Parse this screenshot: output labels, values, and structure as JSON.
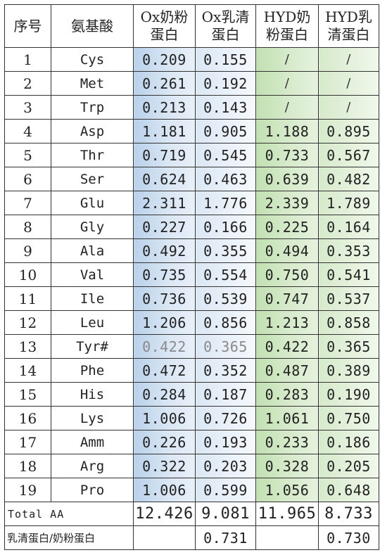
{
  "headers": {
    "index": "序号",
    "amino_acid": "氨基酸",
    "ox_milk": [
      "Ox奶粉",
      "蛋白"
    ],
    "ox_whey": [
      "Ox乳清",
      "蛋白"
    ],
    "hyd_milk": [
      "HYD奶",
      "粉蛋白"
    ],
    "hyd_whey": [
      "HYD乳",
      "清蛋白"
    ]
  },
  "rows": [
    {
      "no": "1",
      "aa": "Cys",
      "ox_milk": "0.209",
      "ox_whey": "0.155",
      "hyd_milk": "/",
      "hyd_whey": "/"
    },
    {
      "no": "2",
      "aa": "Met",
      "ox_milk": "0.261",
      "ox_whey": "0.192",
      "hyd_milk": "/",
      "hyd_whey": "/"
    },
    {
      "no": "3",
      "aa": "Trp",
      "ox_milk": "0.213",
      "ox_whey": "0.143",
      "hyd_milk": "/",
      "hyd_whey": "/"
    },
    {
      "no": "4",
      "aa": "Asp",
      "ox_milk": "1.181",
      "ox_whey": "0.905",
      "hyd_milk": "1.188",
      "hyd_whey": "0.895"
    },
    {
      "no": "5",
      "aa": "Thr",
      "ox_milk": "0.719",
      "ox_whey": "0.545",
      "hyd_milk": "0.733",
      "hyd_whey": "0.567"
    },
    {
      "no": "6",
      "aa": "Ser",
      "ox_milk": "0.624",
      "ox_whey": "0.463",
      "hyd_milk": "0.639",
      "hyd_whey": "0.482"
    },
    {
      "no": "7",
      "aa": "Glu",
      "ox_milk": "2.311",
      "ox_whey": "1.776",
      "hyd_milk": "2.339",
      "hyd_whey": "1.789"
    },
    {
      "no": "8",
      "aa": "Gly",
      "ox_milk": "0.227",
      "ox_whey": "0.166",
      "hyd_milk": "0.225",
      "hyd_whey": "0.164"
    },
    {
      "no": "9",
      "aa": "Ala",
      "ox_milk": "0.492",
      "ox_whey": "0.355",
      "hyd_milk": "0.494",
      "hyd_whey": "0.353"
    },
    {
      "no": "10",
      "aa": "Val",
      "ox_milk": "0.735",
      "ox_whey": "0.554",
      "hyd_milk": "0.750",
      "hyd_whey": "0.541"
    },
    {
      "no": "11",
      "aa": "Ile",
      "ox_milk": "0.736",
      "ox_whey": "0.539",
      "hyd_milk": "0.747",
      "hyd_whey": "0.537"
    },
    {
      "no": "12",
      "aa": "Leu",
      "ox_milk": "1.206",
      "ox_whey": "0.856",
      "hyd_milk": "1.213",
      "hyd_whey": "0.858"
    },
    {
      "no": "13",
      "aa": "Tyr#",
      "ox_milk": "0.422",
      "ox_whey": "0.365",
      "hyd_milk": "0.422",
      "hyd_whey": "0.365"
    },
    {
      "no": "14",
      "aa": "Phe",
      "ox_milk": "0.472",
      "ox_whey": "0.352",
      "hyd_milk": "0.487",
      "hyd_whey": "0.389"
    },
    {
      "no": "15",
      "aa": "His",
      "ox_milk": "0.284",
      "ox_whey": "0.187",
      "hyd_milk": "0.283",
      "hyd_whey": "0.190"
    },
    {
      "no": "16",
      "aa": "Lys",
      "ox_milk": "1.006",
      "ox_whey": "0.726",
      "hyd_milk": "1.061",
      "hyd_whey": "0.750"
    },
    {
      "no": "17",
      "aa": "Amm",
      "ox_milk": "0.226",
      "ox_whey": "0.193",
      "hyd_milk": "0.233",
      "hyd_whey": "0.186"
    },
    {
      "no": "18",
      "aa": "Arg",
      "ox_milk": "0.322",
      "ox_whey": "0.203",
      "hyd_milk": "0.328",
      "hyd_whey": "0.205"
    },
    {
      "no": "19",
      "aa": "Pro",
      "ox_milk": "1.006",
      "ox_whey": "0.599",
      "hyd_milk": "1.056",
      "hyd_whey": "0.648"
    }
  ],
  "total": {
    "label": "Total AA",
    "ox_milk": "12.426",
    "ox_whey": "9.081",
    "hyd_milk": "11.965",
    "hyd_whey": "8.733"
  },
  "ratio": {
    "label": "乳清蛋白/奶粉蛋白",
    "ox_milk": "",
    "ox_whey": "0.731",
    "hyd_milk": "",
    "hyd_whey": "0.730"
  },
  "muted_row": "13",
  "colors": {
    "blue": "#b9d1ea",
    "green": "#c2e0b2",
    "muted_text": "#8a8a8a",
    "border": "#333333"
  }
}
